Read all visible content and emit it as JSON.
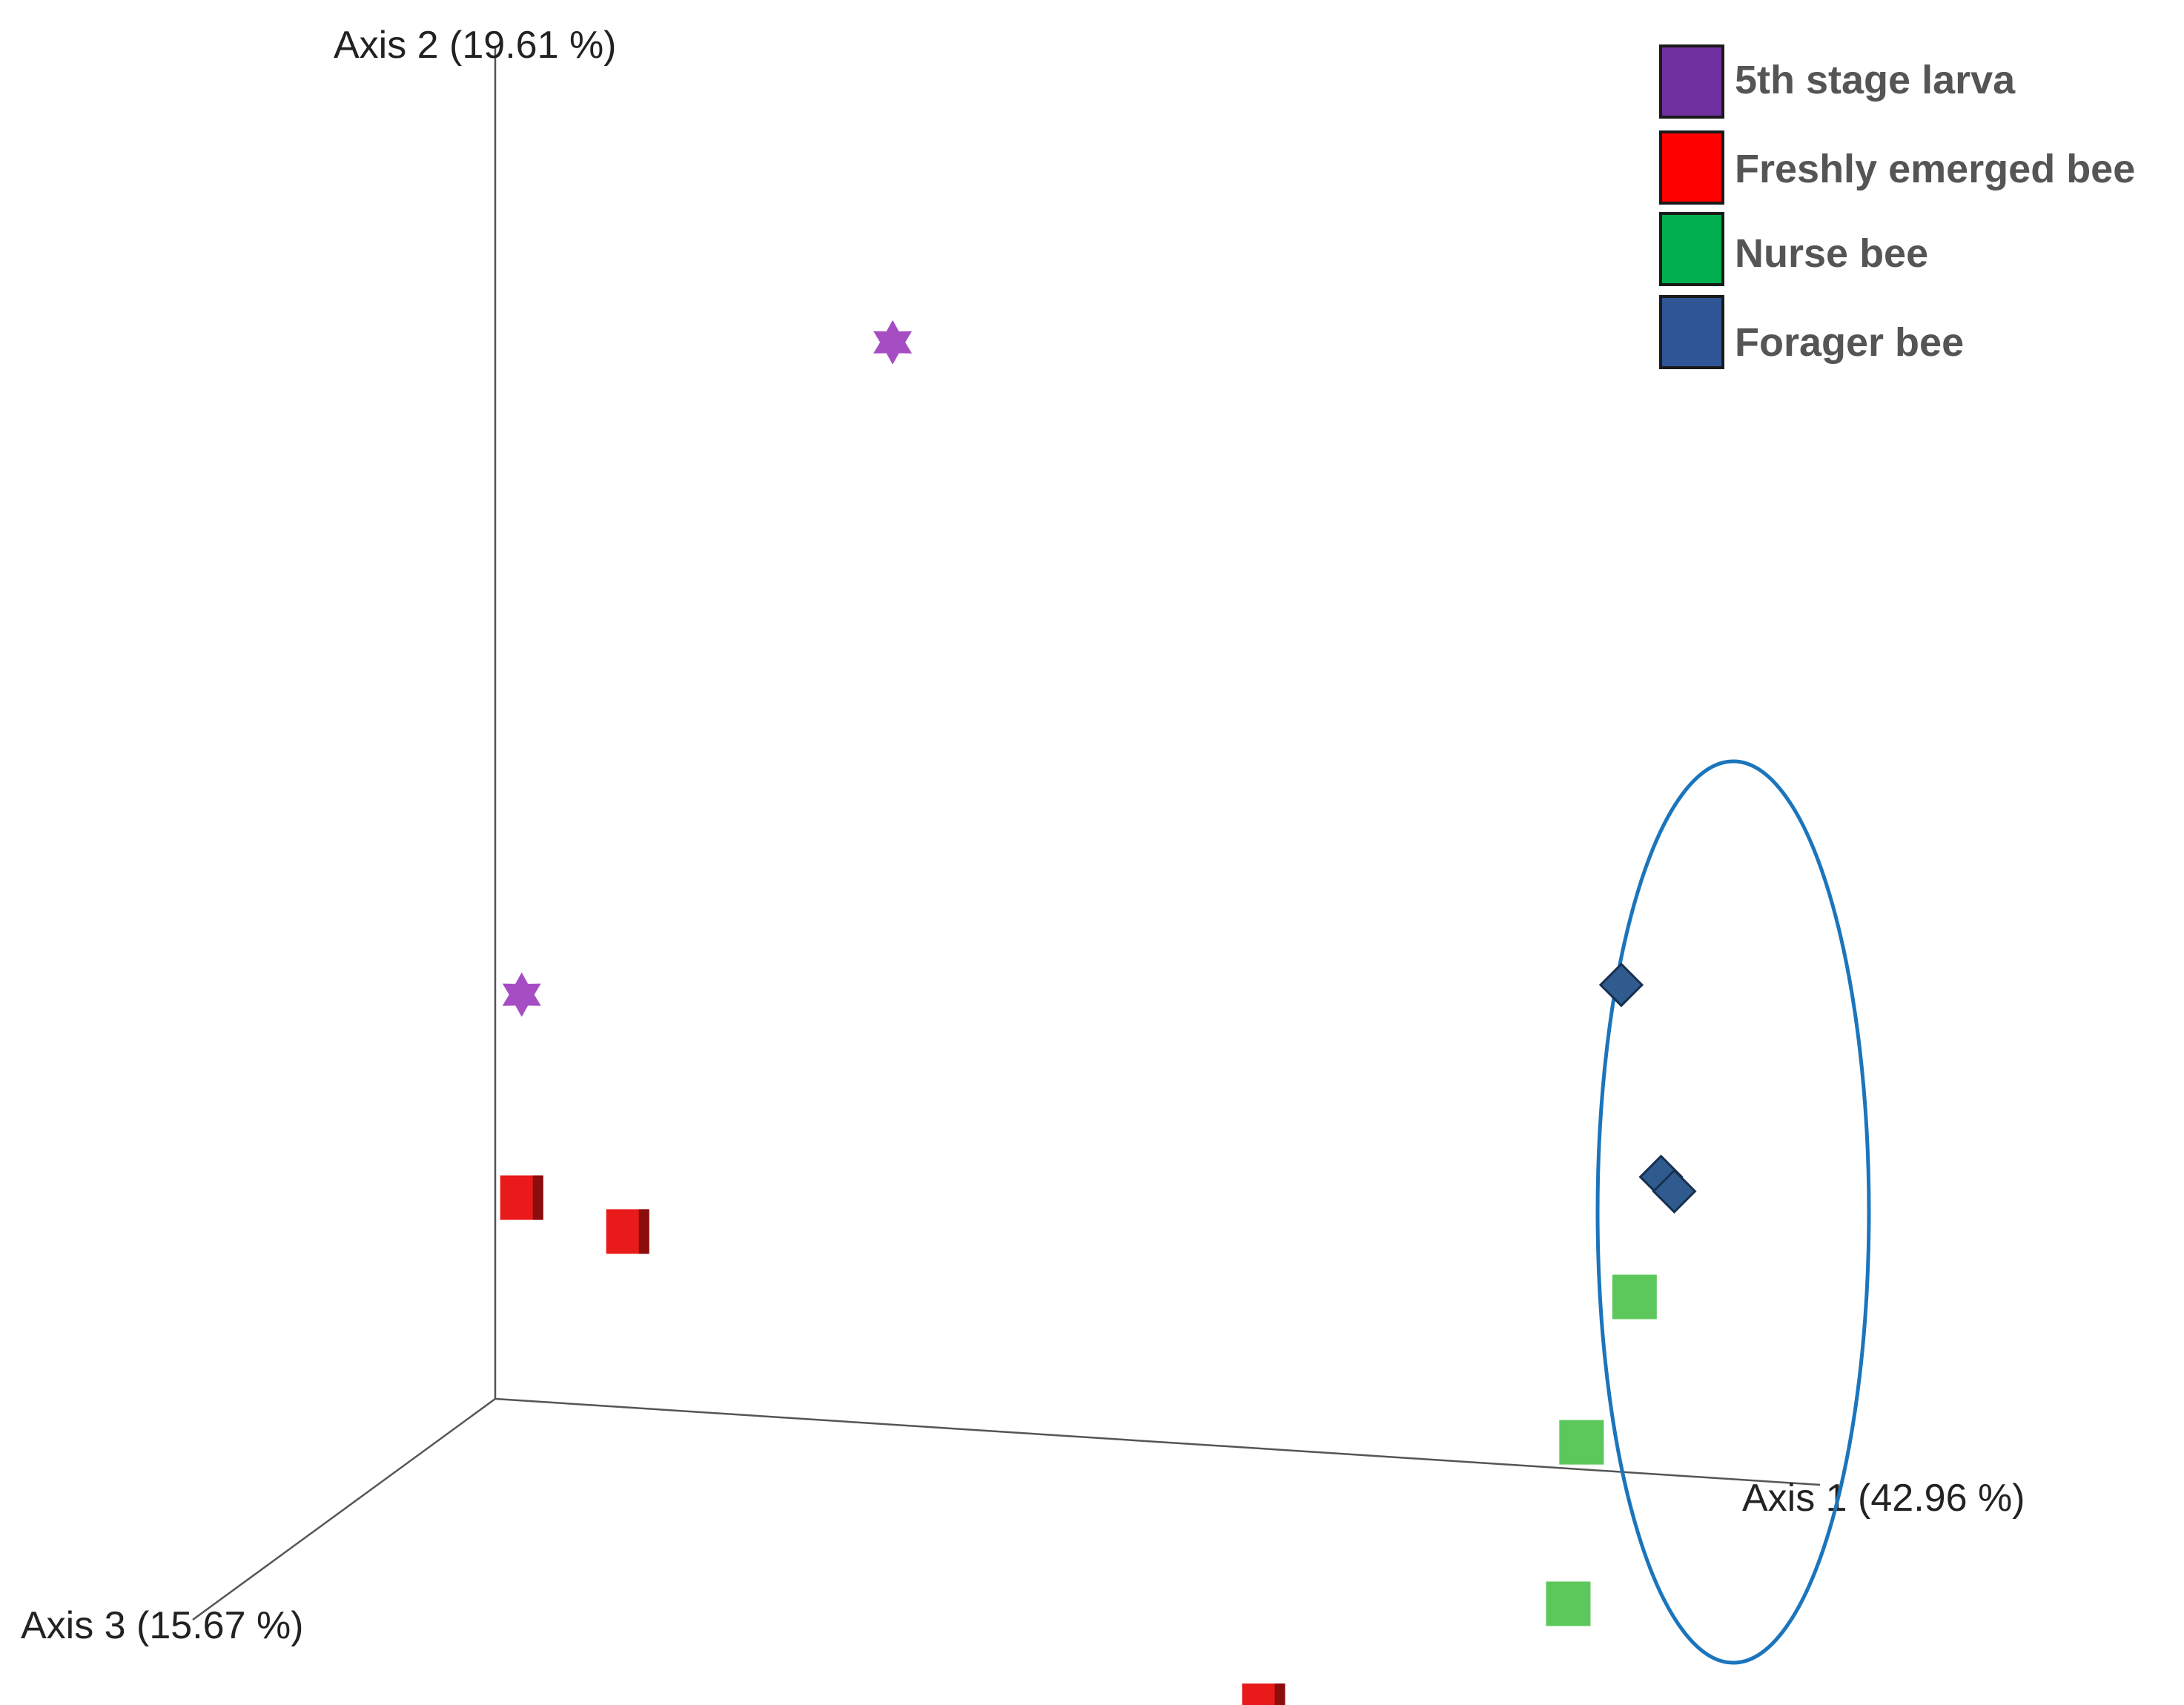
{
  "chart_data": {
    "type": "scatter",
    "projection": "3d",
    "axes": {
      "x": {
        "label": "Axis 1 (42.96 %)"
      },
      "y": {
        "label": "Axis 2 (19.61 %)"
      },
      "z": {
        "label": "Axis 3 (15.67 %)"
      }
    },
    "legend": {
      "position": "top-right",
      "entries": [
        {
          "label": "5th stage larva",
          "color": "#7030a0"
        },
        {
          "label": "Freshly emerged bee",
          "color": "#ff0000"
        },
        {
          "label": "Nurse bee",
          "color": "#00b050"
        },
        {
          "label": "Forager bee",
          "color": "#2f5597"
        }
      ]
    },
    "series": [
      {
        "name": "5th stage larva",
        "marker": "star",
        "color": "#a64dc4",
        "points": [
          {
            "x": 0.3,
            "y": 0.8,
            "z": 0.0
          },
          {
            "x": 0.02,
            "y": 0.3,
            "z": 0.0
          }
        ]
      },
      {
        "name": "Freshly emerged bee",
        "marker": "cube",
        "color": "#e81a1a",
        "points": [
          {
            "x": 0.02,
            "y": 0.15,
            "z": 0.0
          },
          {
            "x": 0.1,
            "y": 0.13,
            "z": 0.0
          },
          {
            "x": 0.58,
            "y": -0.19,
            "z": 0.0
          }
        ]
      },
      {
        "name": "Nurse bee",
        "marker": "square",
        "color": "#5cc85c",
        "points": [
          {
            "x": 0.86,
            "y": 0.13,
            "z": 0.0
          },
          {
            "x": 0.82,
            "y": 0.02,
            "z": 0.0
          },
          {
            "x": 0.81,
            "y": -0.1,
            "z": 0.0
          }
        ]
      },
      {
        "name": "Forager bee",
        "marker": "diamond",
        "color": "#2f5b8f",
        "points": [
          {
            "x": 0.85,
            "y": 0.36,
            "z": 0.0
          },
          {
            "x": 0.88,
            "y": 0.22,
            "z": 0.0
          },
          {
            "x": 0.89,
            "y": 0.21,
            "z": 0.0
          }
        ]
      }
    ],
    "annotations": [
      {
        "type": "ellipse",
        "encloses": [
          "Nurse bee",
          "Forager bee"
        ],
        "color": "#1b75bc"
      }
    ]
  }
}
